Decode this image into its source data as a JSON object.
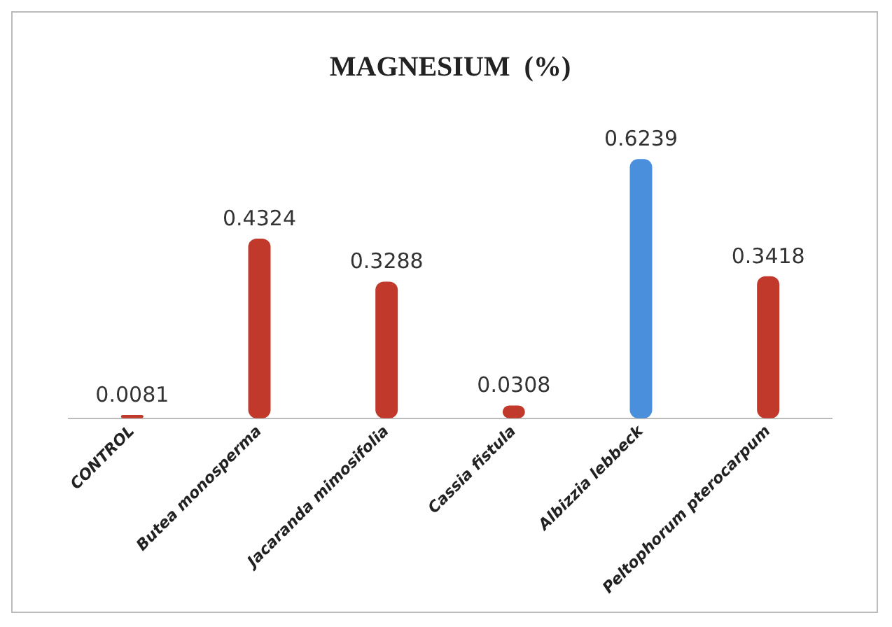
{
  "chart_data": {
    "type": "bar",
    "title": "MAGNESIUM  (%)",
    "categories": [
      "CONTROL",
      "Butea monosperma",
      "Jacaranda mimosifolia",
      "Cassia fistula",
      "Albizzia lebbeck",
      "Peltophorum pterocarpum"
    ],
    "values": [
      0.0081,
      0.4324,
      0.3288,
      0.0308,
      0.6239,
      0.3418
    ],
    "colors": [
      "#c0392b",
      "#c0392b",
      "#c0392b",
      "#c0392b",
      "#4a8fdc",
      "#c0392b"
    ],
    "data_labels": true,
    "grid": false,
    "legend": false,
    "tick_labels": "x"
  }
}
